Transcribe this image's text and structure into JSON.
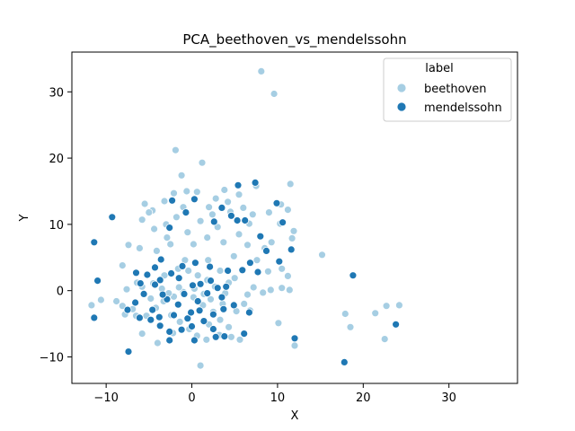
{
  "chart_data": {
    "type": "scatter",
    "title": "PCA_beethoven_vs_mendelssohn",
    "xlabel": "X",
    "ylabel": "Y",
    "xlim": [
      -14,
      38
    ],
    "ylim": [
      -14,
      36
    ],
    "xticks": [
      -10,
      0,
      10,
      20,
      30
    ],
    "yticks": [
      -10,
      0,
      10,
      20,
      30
    ],
    "grid": false,
    "legend": {
      "title": "label",
      "placement": "top-right"
    },
    "series": [
      {
        "name": "beethoven",
        "color": "#a6cee3",
        "points": [
          [
            8.1,
            33.1
          ],
          [
            9.6,
            29.7
          ],
          [
            -1.9,
            21.2
          ],
          [
            1.2,
            19.3
          ],
          [
            -1.2,
            17.4
          ],
          [
            3.8,
            15.2
          ],
          [
            5.5,
            14.5
          ],
          [
            7.5,
            15.8
          ],
          [
            11.5,
            16.1
          ],
          [
            15.2,
            5.4
          ],
          [
            -5.5,
            13.1
          ],
          [
            -4.6,
            12.1
          ],
          [
            -3.2,
            13.5
          ],
          [
            -2.1,
            14.7
          ],
          [
            -0.6,
            15.0
          ],
          [
            0.6,
            14.9
          ],
          [
            2.0,
            12.6
          ],
          [
            2.8,
            13.9
          ],
          [
            4.5,
            11.9
          ],
          [
            6.0,
            12.5
          ],
          [
            7.1,
            11.5
          ],
          [
            9.0,
            11.8
          ],
          [
            10.4,
            13.0
          ],
          [
            11.2,
            12.2
          ],
          [
            10.3,
            10.1
          ],
          [
            11.9,
            9.0
          ],
          [
            11.7,
            7.9
          ],
          [
            9.3,
            7.3
          ],
          [
            6.5,
            6.9
          ],
          [
            5.5,
            8.5
          ],
          [
            3.0,
            9.6
          ],
          [
            1.0,
            10.5
          ],
          [
            -0.5,
            8.8
          ],
          [
            -1.8,
            11.1
          ],
          [
            -3.0,
            10.0
          ],
          [
            -4.4,
            9.3
          ],
          [
            -5.8,
            10.7
          ],
          [
            -7.4,
            6.9
          ],
          [
            -6.1,
            6.4
          ],
          [
            -4.1,
            6.0
          ],
          [
            -2.5,
            7.0
          ],
          [
            0.2,
            7.0
          ],
          [
            1.8,
            8.0
          ],
          [
            3.7,
            7.3
          ],
          [
            4.9,
            5.2
          ],
          [
            7.6,
            4.6
          ],
          [
            8.9,
            2.9
          ],
          [
            10.5,
            3.3
          ],
          [
            11.2,
            2.2
          ],
          [
            10.5,
            0.4
          ],
          [
            11.4,
            0.1
          ],
          [
            -10.6,
            -1.4
          ],
          [
            -11.7,
            -2.2
          ],
          [
            -8.1,
            -2.3
          ],
          [
            -7.8,
            -3.6
          ],
          [
            -6.5,
            -3.8
          ],
          [
            -5.3,
            -3.8
          ],
          [
            -4.2,
            -2.6
          ],
          [
            -3.3,
            -1.6
          ],
          [
            -2.1,
            -0.9
          ],
          [
            -1.0,
            -0.2
          ],
          [
            0.2,
            -1.0
          ],
          [
            1.3,
            -2.2
          ],
          [
            2.5,
            -3.2
          ],
          [
            3.3,
            -4.4
          ],
          [
            4.3,
            -5.5
          ],
          [
            5.2,
            -3.1
          ],
          [
            6.1,
            -2.0
          ],
          [
            6.5,
            -0.6
          ],
          [
            7.2,
            0.5
          ],
          [
            8.3,
            -0.3
          ],
          [
            9.2,
            0.1
          ],
          [
            -1.6,
            3.3
          ],
          [
            -0.4,
            3.0
          ],
          [
            0.7,
            2.3
          ],
          [
            1.8,
            1.6
          ],
          [
            2.7,
            0.6
          ],
          [
            3.9,
            -0.4
          ],
          [
            -3.2,
            2.3
          ],
          [
            -4.5,
            1.1
          ],
          [
            -2.4,
            -3.7
          ],
          [
            -1.4,
            -4.7
          ],
          [
            -0.3,
            -5.8
          ],
          [
            0.6,
            -6.8
          ],
          [
            1.7,
            -7.4
          ],
          [
            3.2,
            -6.7
          ],
          [
            4.6,
            -7.0
          ],
          [
            5.6,
            -7.4
          ],
          [
            -4.0,
            -7.9
          ],
          [
            -5.8,
            -6.5
          ],
          [
            1.0,
            -11.3
          ],
          [
            10.1,
            -4.9
          ],
          [
            12.0,
            -8.3
          ],
          [
            17.9,
            -3.5
          ],
          [
            18.5,
            -5.5
          ],
          [
            21.4,
            -3.4
          ],
          [
            22.7,
            -2.3
          ],
          [
            24.2,
            -2.2
          ],
          [
            22.5,
            -7.3
          ],
          [
            -2.9,
            8.0
          ],
          [
            -0.8,
            4.6
          ],
          [
            1.9,
            4.6
          ],
          [
            3.3,
            3.0
          ],
          [
            5.0,
            1.9
          ],
          [
            -6.4,
            1.2
          ],
          [
            -7.6,
            0.2
          ],
          [
            -8.8,
            -1.6
          ],
          [
            -6.9,
            -2.8
          ],
          [
            -3.5,
            0.3
          ],
          [
            -2.7,
            -0.4
          ],
          [
            -1.5,
            0.5
          ],
          [
            0.3,
            0.3
          ],
          [
            1.4,
            -0.5
          ],
          [
            2.2,
            -1.3
          ],
          [
            3.6,
            -2.0
          ],
          [
            4.3,
            1.2
          ],
          [
            -4.8,
            -1.2
          ],
          [
            -5.8,
            0.6
          ],
          [
            8.5,
            6.4
          ],
          [
            6.7,
            10.1
          ],
          [
            4.2,
            13.4
          ],
          [
            2.4,
            11.5
          ],
          [
            -1.0,
            12.6
          ],
          [
            -5.0,
            11.8
          ],
          [
            -8.1,
            3.8
          ],
          [
            -2.2,
            -6.4
          ],
          [
            6.8,
            -3.0
          ],
          [
            2.0,
            -5.1
          ]
        ]
      },
      {
        "name": "mendelssohn",
        "color": "#1f78b4",
        "points": [
          [
            -9.3,
            11.1
          ],
          [
            -11.4,
            7.3
          ],
          [
            -11.0,
            1.5
          ],
          [
            -11.4,
            -4.1
          ],
          [
            -7.4,
            -9.2
          ],
          [
            -6.5,
            2.7
          ],
          [
            -5.2,
            2.4
          ],
          [
            -4.3,
            3.5
          ],
          [
            -3.6,
            4.7
          ],
          [
            -2.6,
            9.5
          ],
          [
            -2.3,
            13.6
          ],
          [
            0.3,
            13.8
          ],
          [
            -0.7,
            11.8
          ],
          [
            2.6,
            10.4
          ],
          [
            3.5,
            12.5
          ],
          [
            5.4,
            15.9
          ],
          [
            6.2,
            10.6
          ],
          [
            5.3,
            10.6
          ],
          [
            7.4,
            16.3
          ],
          [
            8.0,
            8.2
          ],
          [
            9.9,
            13.2
          ],
          [
            10.6,
            10.3
          ],
          [
            8.7,
            6.0
          ],
          [
            6.8,
            4.2
          ],
          [
            7.7,
            2.8
          ],
          [
            5.9,
            3.1
          ],
          [
            4.2,
            3.0
          ],
          [
            2.1,
            3.6
          ],
          [
            0.4,
            4.2
          ],
          [
            -1.1,
            3.7
          ],
          [
            -2.4,
            2.6
          ],
          [
            -3.7,
            1.6
          ],
          [
            -4.3,
            0.9
          ],
          [
            -5.6,
            -0.5
          ],
          [
            -6.6,
            -1.8
          ],
          [
            -7.5,
            -2.9
          ],
          [
            -6.1,
            -4.1
          ],
          [
            -4.8,
            -4.4
          ],
          [
            -3.7,
            -5.3
          ],
          [
            -2.6,
            -6.2
          ],
          [
            -1.2,
            -5.9
          ],
          [
            0.0,
            -5.4
          ],
          [
            1.4,
            -4.6
          ],
          [
            2.5,
            -3.6
          ],
          [
            3.7,
            -2.8
          ],
          [
            4.9,
            -2.2
          ],
          [
            6.7,
            -3.3
          ],
          [
            6.1,
            -6.5
          ],
          [
            3.8,
            -6.9
          ],
          [
            2.8,
            -7.0
          ],
          [
            0.3,
            -7.5
          ],
          [
            -2.6,
            -7.5
          ],
          [
            -0.5,
            -4.2
          ],
          [
            -1.6,
            -2.1
          ],
          [
            -2.9,
            -1.3
          ],
          [
            -3.4,
            -0.6
          ],
          [
            0.7,
            -1.6
          ],
          [
            1.8,
            -0.4
          ],
          [
            3.0,
            0.4
          ],
          [
            2.2,
            1.5
          ],
          [
            0.1,
            0.8
          ],
          [
            -0.9,
            -0.5
          ],
          [
            12.0,
            -7.2
          ],
          [
            17.8,
            -10.8
          ],
          [
            18.8,
            2.3
          ],
          [
            23.8,
            -5.1
          ],
          [
            -3.8,
            -4.0
          ],
          [
            -2.1,
            -3.7
          ],
          [
            0.9,
            -3.0
          ],
          [
            3.5,
            -1.0
          ],
          [
            4.0,
            0.6
          ],
          [
            -6.0,
            1.1
          ],
          [
            -1.5,
            1.9
          ],
          [
            10.2,
            4.4
          ],
          [
            11.6,
            6.2
          ],
          [
            4.6,
            11.3
          ],
          [
            1.0,
            1.0
          ],
          [
            -0.1,
            -3.3
          ],
          [
            2.5,
            -5.8
          ],
          [
            -4.6,
            -2.9
          ]
        ]
      }
    ]
  }
}
